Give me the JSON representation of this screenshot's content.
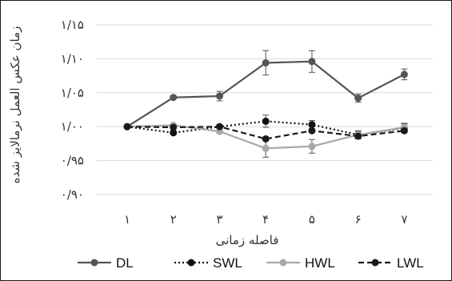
{
  "chart_data": {
    "type": "line",
    "ylabel": "زمان عکس العمل نرمالایز شده",
    "xlabel": "فاصله زمانی",
    "categories": [
      "۱",
      "۲",
      "۳",
      "۴",
      "۵",
      "۶",
      "۷"
    ],
    "ylim": [
      0.9,
      1.15
    ],
    "yticks": [
      0.9,
      0.95,
      1.0,
      1.05,
      1.1,
      1.15
    ],
    "ytick_labels": [
      "۰/۹۰",
      "۰/۹۵",
      "۱/۰۰",
      "۱/۰۵",
      "۱/۱۰",
      "۱/۱۵"
    ],
    "grid": "horizontal",
    "legend_position": "bottom",
    "series": [
      {
        "name": "DL",
        "color": "#555555",
        "line_style": "solid",
        "values": [
          1.0,
          1.043,
          1.045,
          1.094,
          1.096,
          1.042,
          1.077
        ],
        "error": [
          0.0,
          0.0,
          0.007,
          0.018,
          0.016,
          0.006,
          0.008
        ]
      },
      {
        "name": "SWL",
        "color": "#111111",
        "line_style": "dotted",
        "values": [
          1.0,
          0.991,
          1.0,
          1.008,
          1.003,
          0.988,
          0.998
        ],
        "error": [
          0.0,
          0.0,
          0.0,
          0.009,
          0.006,
          0.006,
          0.006
        ]
      },
      {
        "name": "HWL",
        "color": "#a8a8a8",
        "line_style": "solid",
        "values": [
          1.0,
          1.002,
          0.993,
          0.968,
          0.971,
          0.988,
          0.999
        ],
        "error": [
          0.0,
          0.0,
          0.0,
          0.013,
          0.01,
          0.005,
          0.006
        ]
      },
      {
        "name": "LWL",
        "color": "#1a1a1a",
        "line_style": "dashed",
        "values": [
          1.0,
          0.999,
          1.0,
          0.982,
          0.994,
          0.986,
          0.994
        ],
        "error": [
          0.0,
          0.0,
          0.0,
          0.0,
          0.0,
          0.004,
          0.0
        ]
      }
    ]
  }
}
